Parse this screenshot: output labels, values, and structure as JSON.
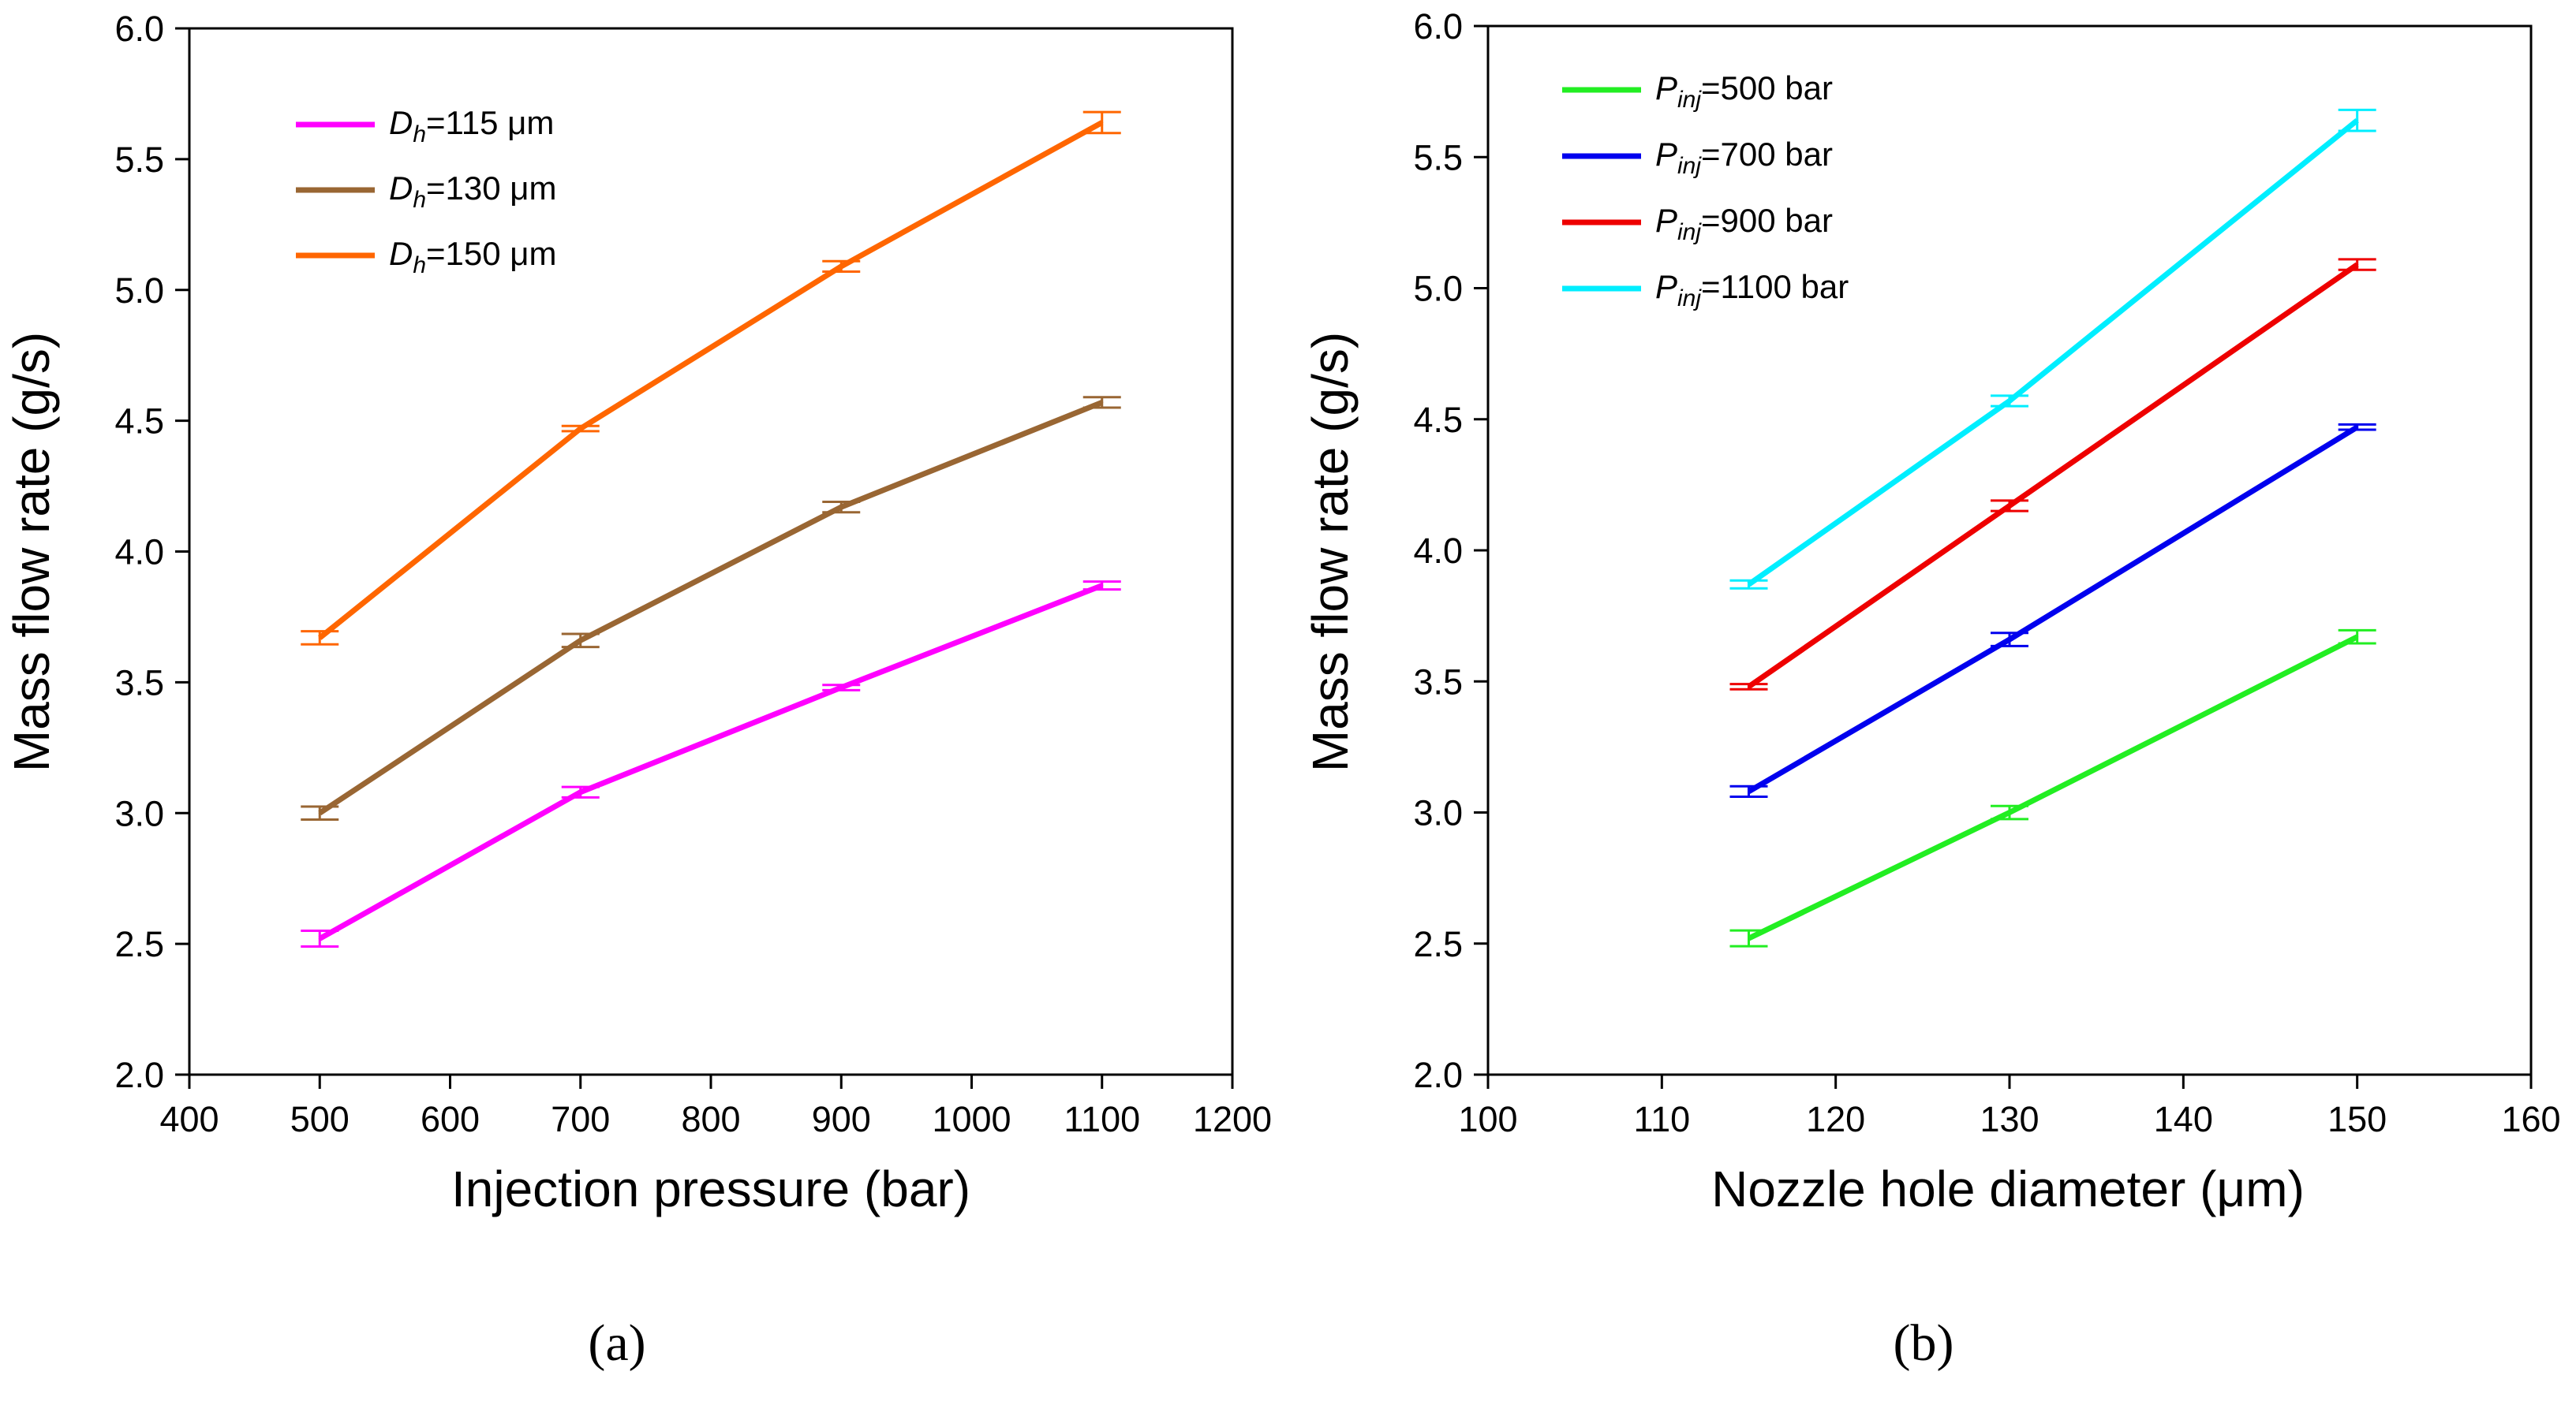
{
  "chart_data": [
    {
      "type": "line",
      "caption": "(a)",
      "xlabel": "Injection pressure (bar)",
      "ylabel": "Mass flow rate (g/s)",
      "xlim": [
        400,
        1200
      ],
      "ylim": [
        2.0,
        6.0
      ],
      "xticks": [
        400,
        500,
        600,
        700,
        800,
        900,
        1000,
        1100,
        1200
      ],
      "yticks": [
        2.0,
        2.5,
        3.0,
        3.5,
        4.0,
        4.5,
        5.0,
        5.5,
        6.0
      ],
      "x": [
        500,
        700,
        900,
        1100
      ],
      "grid": false,
      "legend_position": "top-left",
      "series": [
        {
          "symbol": "D",
          "sub": "h",
          "rest": "=115 μm",
          "color": "#ff00ff",
          "values": [
            2.52,
            3.08,
            3.48,
            3.87
          ],
          "errors": [
            0.03,
            0.02,
            0.01,
            0.015
          ]
        },
        {
          "symbol": "D",
          "sub": "h",
          "rest": "=130 μm",
          "color": "#996633",
          "values": [
            3.0,
            3.66,
            4.17,
            4.57
          ],
          "errors": [
            0.025,
            0.025,
            0.02,
            0.02
          ]
        },
        {
          "symbol": "D",
          "sub": "h",
          "rest": "=150 μm",
          "color": "#ff6600",
          "values": [
            3.67,
            4.47,
            5.09,
            5.64
          ],
          "errors": [
            0.025,
            0.01,
            0.02,
            0.04
          ]
        }
      ]
    },
    {
      "type": "line",
      "caption": "(b)",
      "xlabel": "Nozzle hole diameter (μm)",
      "ylabel": "Mass flow rate (g/s)",
      "xlim": [
        100,
        160
      ],
      "ylim": [
        2.0,
        6.0
      ],
      "xticks": [
        100,
        110,
        120,
        130,
        140,
        150,
        160
      ],
      "yticks": [
        2.0,
        2.5,
        3.0,
        3.5,
        4.0,
        4.5,
        5.0,
        5.5,
        6.0
      ],
      "x": [
        115,
        130,
        150
      ],
      "grid": false,
      "legend_position": "top-left",
      "series": [
        {
          "symbol": "P",
          "sub": "inj",
          "rest": "=500 bar",
          "color": "#22ee22",
          "values": [
            2.52,
            3.0,
            3.67
          ],
          "errors": [
            0.03,
            0.025,
            0.025
          ]
        },
        {
          "symbol": "P",
          "sub": "inj",
          "rest": "=700 bar",
          "color": "#0000ee",
          "values": [
            3.08,
            3.66,
            4.47
          ],
          "errors": [
            0.02,
            0.025,
            0.01
          ]
        },
        {
          "symbol": "P",
          "sub": "inj",
          "rest": "=900 bar",
          "color": "#ee0000",
          "values": [
            3.48,
            4.17,
            5.09
          ],
          "errors": [
            0.01,
            0.02,
            0.02
          ]
        },
        {
          "symbol": "P",
          "sub": "inj",
          "rest": "=1100 bar",
          "color": "#00eeff",
          "values": [
            3.87,
            4.57,
            5.64
          ],
          "errors": [
            0.015,
            0.02,
            0.04
          ]
        }
      ]
    }
  ]
}
